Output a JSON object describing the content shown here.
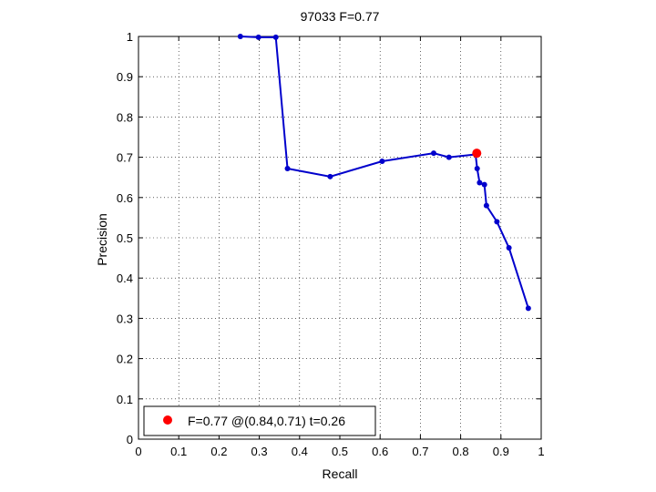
{
  "chart_data": {
    "type": "line",
    "title": "97033 F=0.77",
    "xlabel": "Recall",
    "ylabel": "Precision",
    "xlim": [
      0,
      1
    ],
    "ylim": [
      0,
      1
    ],
    "xticks": [
      "0",
      "0.1",
      "0.2",
      "0.3",
      "0.4",
      "0.5",
      "0.6",
      "0.7",
      "0.8",
      "0.9",
      "1"
    ],
    "yticks": [
      "0",
      "0.1",
      "0.2",
      "0.3",
      "0.4",
      "0.5",
      "0.6",
      "0.7",
      "0.8",
      "0.9",
      "1"
    ],
    "grid": true,
    "series": [
      {
        "color": "#0000cc",
        "x": [
          0.253,
          0.298,
          0.341,
          0.37,
          0.476,
          0.605,
          0.733,
          0.771,
          0.837,
          0.841,
          0.847,
          0.859,
          0.864,
          0.89,
          0.92,
          0.968
        ],
        "y": [
          1.0,
          0.998,
          0.998,
          0.672,
          0.652,
          0.69,
          0.71,
          0.7,
          0.707,
          0.672,
          0.637,
          0.632,
          0.58,
          0.54,
          0.475,
          0.325
        ]
      }
    ],
    "highlight": {
      "x": 0.84,
      "y": 0.71,
      "color": "#ff0000"
    },
    "legend": {
      "position": "bottom-left",
      "text": "F=0.77 @(0.84,0.71) t=0.26"
    }
  }
}
